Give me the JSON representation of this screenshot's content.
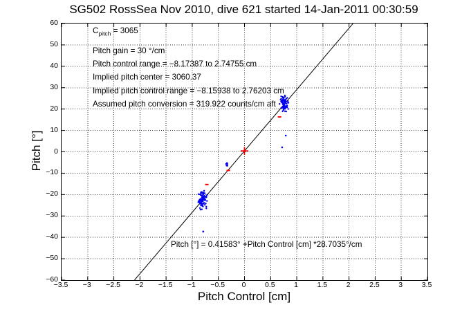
{
  "chart_data": {
    "type": "scatter",
    "title": "SG502 RossSea Nov 2010, dive 621 started 14-Jan-2011 00:30:59",
    "xlabel": "Pitch Control [cm]",
    "ylabel": "Pitch [°]",
    "xlim": [
      -3.5,
      3.5
    ],
    "ylim": [
      -60,
      60
    ],
    "xticks": [
      -3.5,
      -3,
      -2.5,
      -2,
      -1.5,
      -1,
      -0.5,
      0,
      0.5,
      1,
      1.5,
      2,
      2.5,
      3,
      3.5
    ],
    "yticks": [
      -60,
      -50,
      -40,
      -30,
      -20,
      -10,
      0,
      10,
      20,
      30,
      40,
      50,
      60
    ],
    "grid": "dotted",
    "legend": "none",
    "colors": {
      "points": "#0000ee",
      "markers": "#ff0000",
      "fit_line": "#000000",
      "grid": "#000000"
    },
    "fit_line": {
      "slope_deg_per_cm": 28.7035,
      "intercept_deg": 0.41583,
      "equation": "Pitch [°] = 0.41583° +Pitch Control [cm] *28.7035°/cm"
    },
    "info_lines": [
      {
        "pre": "C",
        "sub": "pitch",
        "post": " = 3065"
      },
      {
        "text": "Pitch gain = 30 °/cm"
      },
      {
        "text": "Pitch control range = −8.17387 to 2.74755 cm"
      },
      {
        "text": "Implied pitch center = 3060.37"
      },
      {
        "text": "Implied pitch control range = −8.15938 to 2.76203 cm"
      },
      {
        "text": "Assumed pitch conversion = 319.922 counts/cm aft"
      }
    ],
    "scatter": {
      "clusters": [
        {
          "name": "cluster-positive",
          "cx": 0.76,
          "sx": 0.04,
          "ymin": 17.5,
          "ymax": 26.8,
          "n": 85
        },
        {
          "name": "cluster-negative",
          "cx": -0.81,
          "sx": 0.045,
          "ymin": -27.3,
          "ymax": -17.5,
          "n": 85
        },
        {
          "name": "cluster-small",
          "cx": -0.335,
          "sx": 0.012,
          "ymin": -7.4,
          "ymax": -4.6,
          "n": 7
        }
      ],
      "isolated_points": [
        [
          0.79,
          7.6
        ],
        [
          0.72,
          2.1
        ],
        [
          -0.79,
          -37.3
        ]
      ]
    },
    "red_markers": {
      "dashes": [
        [
          0.67,
          16.3
        ],
        [
          -0.72,
          -15.3
        ],
        [
          -0.31,
          -8.7
        ]
      ],
      "plus": [
        0,
        0.42
      ]
    }
  }
}
